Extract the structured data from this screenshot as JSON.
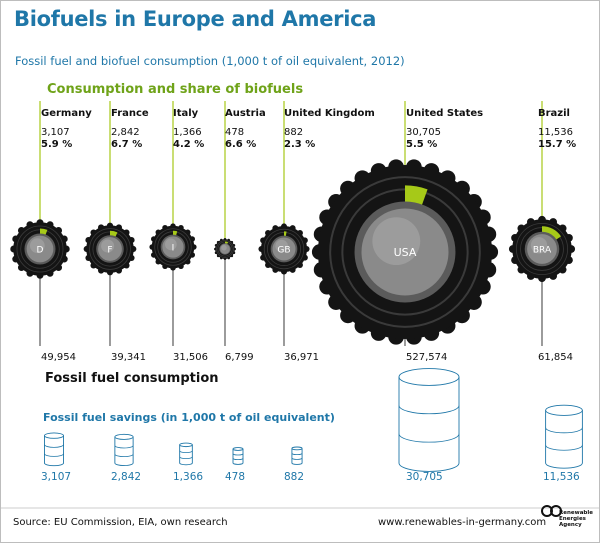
{
  "title": "Biofuels in Europe and America",
  "subtitle": "Fossil fuel and biofuel consumption (1,000 t of oil equivalent, 2012)",
  "section_consumption": "Consumption and share of biofuels",
  "section_fossil": "Fossil fuel consumption",
  "section_savings": "Fossil fuel savings (in 1,000 t of oil equivalent)",
  "footer": {
    "source": "Source: EU Commission, EIA, own research",
    "url": "www.renewables-in-germany.com",
    "logo_text": [
      "Renewable",
      "Energies",
      "Agency"
    ]
  },
  "colors": {
    "accent_green": "#a6c918",
    "title_blue": "#1f77a8",
    "tire_black": "#141414",
    "rim_gray": "#8a8a8a"
  },
  "chart_data": {
    "type": "proportional-symbol",
    "title": "Biofuels in Europe and America",
    "subtitle": "Fossil fuel and biofuel consumption (1,000 t of oil equivalent, 2012)",
    "countries": [
      {
        "name": "Germany",
        "code": "D",
        "biofuel": "3,107",
        "biofuel_value": 3107,
        "share": "5.9 %",
        "share_value": 5.9,
        "fossil": "49,954",
        "fossil_value": 49954,
        "saving": "3,107"
      },
      {
        "name": "France",
        "code": "F",
        "biofuel": "2,842",
        "biofuel_value": 2842,
        "share": "6.7 %",
        "share_value": 6.7,
        "fossil": "39,341",
        "fossil_value": 39341,
        "saving": "2,842"
      },
      {
        "name": "Italy",
        "code": "I",
        "biofuel": "1,366",
        "biofuel_value": 1366,
        "share": "4.2 %",
        "share_value": 4.2,
        "fossil": "31,506",
        "fossil_value": 31506,
        "saving": "1,366"
      },
      {
        "name": "Austria",
        "code": "",
        "biofuel": "478",
        "biofuel_value": 478,
        "share": "6.6 %",
        "share_value": 6.6,
        "fossil": "6,799",
        "fossil_value": 6799,
        "saving": "478"
      },
      {
        "name": "United Kingdom",
        "code": "GB",
        "biofuel": "882",
        "biofuel_value": 882,
        "share": "2.3 %",
        "share_value": 2.3,
        "fossil": "36,971",
        "fossil_value": 36971,
        "saving": "882"
      },
      {
        "name": "United States",
        "code": "USA",
        "biofuel": "30,705",
        "biofuel_value": 30705,
        "share": "5.5 %",
        "share_value": 5.5,
        "fossil": "527,574",
        "fossil_value": 527574,
        "saving": "30,705"
      },
      {
        "name": "Brazil",
        "code": "BRA",
        "biofuel": "11,536",
        "biofuel_value": 11536,
        "share": "15.7 %",
        "share_value": 15.7,
        "fossil": "61,854",
        "fossil_value": 61854,
        "saving": "11,536"
      }
    ]
  }
}
